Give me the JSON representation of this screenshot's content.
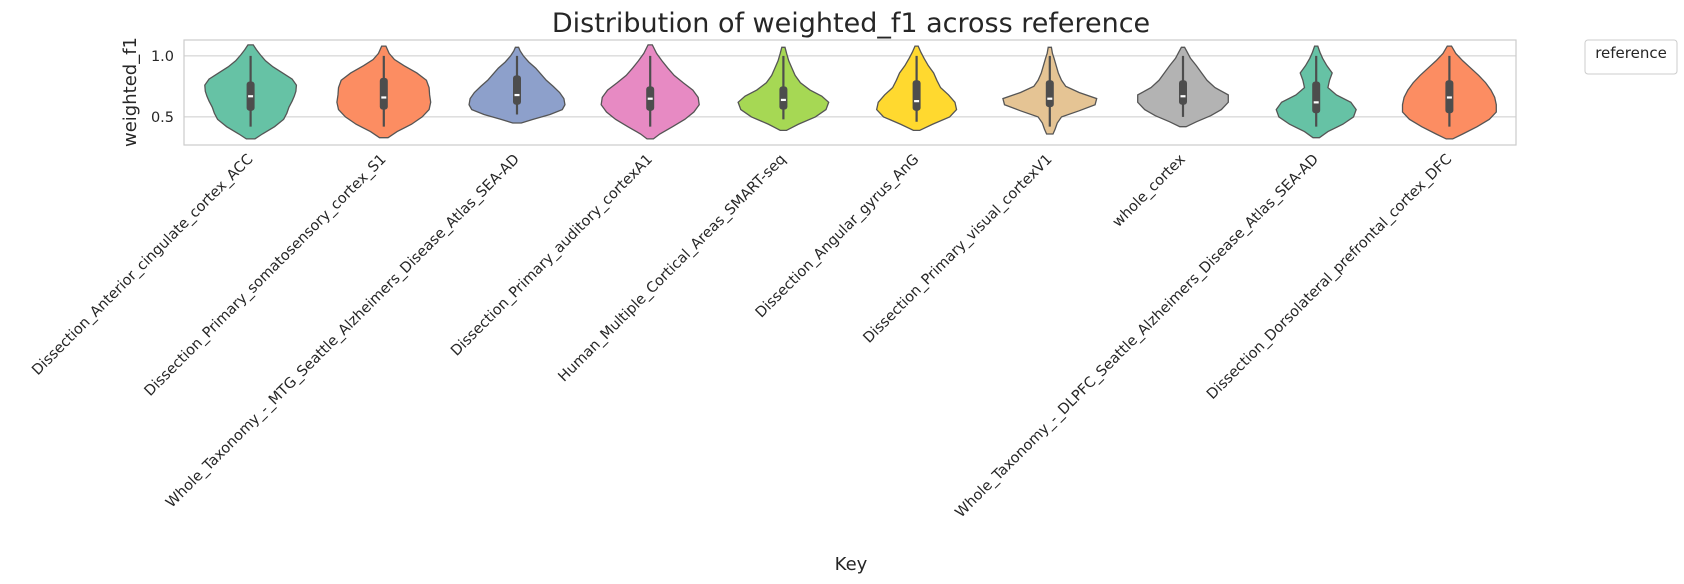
{
  "chart_data": {
    "type": "violin",
    "title": "Distribution of weighted_f1 across reference",
    "xlabel": "Key",
    "ylabel": "weighted_f1",
    "ylim": [
      0.27,
      1.13
    ],
    "yticks": [
      0.5,
      1.0
    ],
    "ytick_labels": [
      "0.5",
      "1.0"
    ],
    "grid": true,
    "legend": {
      "title": "reference",
      "placement": "outside-top-right"
    },
    "categories": [
      "Dissection_Anterior_cingulate_cortex_ACC",
      "Dissection_Primary_somatosensory_cortex_S1",
      "Whole_Taxonomy_-_MTG_Seattle_Alzheimers_Disease_Atlas_SEA-AD",
      "Dissection_Primary_auditory_cortexA1",
      "Human_Multiple_Cortical_Areas_SMART-seq",
      "Dissection_Angular_gyrus_AnG",
      "Dissection_Primary_visual_cortexV1",
      "whole_cortex",
      "Whole_Taxonomy_-_DLPFC_Seattle_Alzheimers_Disease_Atlas_SEA-AD",
      "Dissection_Dorsolateral_prefrontal_cortex_DFC"
    ],
    "colors": [
      "#66c2a5",
      "#fc8d62",
      "#8da0cb",
      "#e78ac3",
      "#a6d854",
      "#ffd92f",
      "#e5c494",
      "#b3b3b3",
      "#66c2a5",
      "#fc8d62"
    ],
    "series": [
      {
        "min": 0.32,
        "max": 1.09,
        "q1": 0.55,
        "median": 0.67,
        "q3": 0.79,
        "whisker_low": 0.42,
        "whisker_high": 1.0,
        "density": [
          [
            0.32,
            0.08
          ],
          [
            0.36,
            0.22
          ],
          [
            0.42,
            0.45
          ],
          [
            0.48,
            0.62
          ],
          [
            0.53,
            0.68
          ],
          [
            0.58,
            0.72
          ],
          [
            0.63,
            0.78
          ],
          [
            0.67,
            0.82
          ],
          [
            0.71,
            0.85
          ],
          [
            0.76,
            0.86
          ],
          [
            0.81,
            0.78
          ],
          [
            0.86,
            0.6
          ],
          [
            0.91,
            0.42
          ],
          [
            0.96,
            0.28
          ],
          [
            1.01,
            0.18
          ],
          [
            1.05,
            0.11
          ],
          [
            1.09,
            0.05
          ]
        ]
      },
      {
        "min": 0.33,
        "max": 1.08,
        "q1": 0.56,
        "median": 0.66,
        "q3": 0.82,
        "whisker_low": 0.42,
        "whisker_high": 1.0,
        "density": [
          [
            0.33,
            0.08
          ],
          [
            0.38,
            0.25
          ],
          [
            0.44,
            0.52
          ],
          [
            0.5,
            0.72
          ],
          [
            0.56,
            0.85
          ],
          [
            0.62,
            0.88
          ],
          [
            0.68,
            0.86
          ],
          [
            0.74,
            0.85
          ],
          [
            0.8,
            0.8
          ],
          [
            0.86,
            0.62
          ],
          [
            0.92,
            0.38
          ],
          [
            0.97,
            0.2
          ],
          [
            1.02,
            0.1
          ],
          [
            1.08,
            0.04
          ]
        ]
      },
      {
        "min": 0.45,
        "max": 1.07,
        "q1": 0.6,
        "median": 0.68,
        "q3": 0.84,
        "whisker_low": 0.52,
        "whisker_high": 1.0,
        "density": [
          [
            0.45,
            0.08
          ],
          [
            0.48,
            0.3
          ],
          [
            0.52,
            0.62
          ],
          [
            0.56,
            0.85
          ],
          [
            0.6,
            0.9
          ],
          [
            0.65,
            0.88
          ],
          [
            0.7,
            0.8
          ],
          [
            0.75,
            0.68
          ],
          [
            0.8,
            0.55
          ],
          [
            0.85,
            0.45
          ],
          [
            0.9,
            0.35
          ],
          [
            0.95,
            0.22
          ],
          [
            1.0,
            0.12
          ],
          [
            1.04,
            0.06
          ],
          [
            1.07,
            0.03
          ]
        ]
      },
      {
        "min": 0.32,
        "max": 1.09,
        "q1": 0.55,
        "median": 0.65,
        "q3": 0.75,
        "whisker_low": 0.42,
        "whisker_high": 1.0,
        "density": [
          [
            0.32,
            0.06
          ],
          [
            0.36,
            0.18
          ],
          [
            0.42,
            0.42
          ],
          [
            0.48,
            0.65
          ],
          [
            0.54,
            0.82
          ],
          [
            0.6,
            0.92
          ],
          [
            0.66,
            0.9
          ],
          [
            0.72,
            0.8
          ],
          [
            0.78,
            0.62
          ],
          [
            0.84,
            0.45
          ],
          [
            0.9,
            0.33
          ],
          [
            0.96,
            0.22
          ],
          [
            1.02,
            0.12
          ],
          [
            1.09,
            0.04
          ]
        ]
      },
      {
        "min": 0.39,
        "max": 1.07,
        "q1": 0.56,
        "median": 0.64,
        "q3": 0.75,
        "whisker_low": 0.48,
        "whisker_high": 1.0,
        "density": [
          [
            0.39,
            0.06
          ],
          [
            0.44,
            0.28
          ],
          [
            0.5,
            0.6
          ],
          [
            0.56,
            0.8
          ],
          [
            0.62,
            0.85
          ],
          [
            0.67,
            0.72
          ],
          [
            0.72,
            0.5
          ],
          [
            0.78,
            0.32
          ],
          [
            0.84,
            0.22
          ],
          [
            0.9,
            0.16
          ],
          [
            0.96,
            0.1
          ],
          [
            1.02,
            0.06
          ],
          [
            1.07,
            0.03
          ]
        ]
      },
      {
        "min": 0.39,
        "max": 1.08,
        "q1": 0.55,
        "median": 0.63,
        "q3": 0.8,
        "whisker_low": 0.46,
        "whisker_high": 1.0,
        "density": [
          [
            0.39,
            0.06
          ],
          [
            0.44,
            0.3
          ],
          [
            0.5,
            0.62
          ],
          [
            0.56,
            0.75
          ],
          [
            0.62,
            0.72
          ],
          [
            0.68,
            0.6
          ],
          [
            0.74,
            0.45
          ],
          [
            0.8,
            0.38
          ],
          [
            0.86,
            0.32
          ],
          [
            0.92,
            0.22
          ],
          [
            0.98,
            0.14
          ],
          [
            1.03,
            0.08
          ],
          [
            1.08,
            0.03
          ]
        ]
      },
      {
        "min": 0.36,
        "max": 1.07,
        "q1": 0.58,
        "median": 0.65,
        "q3": 0.8,
        "whisker_low": 0.42,
        "whisker_high": 1.0,
        "density": [
          [
            0.36,
            0.06
          ],
          [
            0.4,
            0.1
          ],
          [
            0.45,
            0.14
          ],
          [
            0.5,
            0.22
          ],
          [
            0.55,
            0.55
          ],
          [
            0.6,
            0.85
          ],
          [
            0.65,
            0.88
          ],
          [
            0.7,
            0.55
          ],
          [
            0.75,
            0.3
          ],
          [
            0.8,
            0.22
          ],
          [
            0.86,
            0.16
          ],
          [
            0.92,
            0.12
          ],
          [
            0.98,
            0.08
          ],
          [
            1.02,
            0.05
          ],
          [
            1.07,
            0.03
          ]
        ]
      },
      {
        "min": 0.42,
        "max": 1.07,
        "q1": 0.6,
        "median": 0.67,
        "q3": 0.8,
        "whisker_low": 0.5,
        "whisker_high": 1.0,
        "density": [
          [
            0.42,
            0.06
          ],
          [
            0.46,
            0.25
          ],
          [
            0.51,
            0.52
          ],
          [
            0.56,
            0.72
          ],
          [
            0.62,
            0.85
          ],
          [
            0.68,
            0.85
          ],
          [
            0.74,
            0.6
          ],
          [
            0.8,
            0.45
          ],
          [
            0.86,
            0.35
          ],
          [
            0.92,
            0.25
          ],
          [
            0.98,
            0.14
          ],
          [
            1.03,
            0.08
          ],
          [
            1.07,
            0.03
          ]
        ]
      },
      {
        "min": 0.33,
        "max": 1.08,
        "q1": 0.53,
        "median": 0.62,
        "q3": 0.79,
        "whisker_low": 0.42,
        "whisker_high": 1.0,
        "density": [
          [
            0.33,
            0.06
          ],
          [
            0.38,
            0.22
          ],
          [
            0.44,
            0.5
          ],
          [
            0.5,
            0.7
          ],
          [
            0.56,
            0.75
          ],
          [
            0.62,
            0.65
          ],
          [
            0.68,
            0.38
          ],
          [
            0.74,
            0.22
          ],
          [
            0.8,
            0.25
          ],
          [
            0.86,
            0.3
          ],
          [
            0.92,
            0.2
          ],
          [
            0.98,
            0.12
          ],
          [
            1.03,
            0.07
          ],
          [
            1.08,
            0.03
          ]
        ]
      },
      {
        "min": 0.32,
        "max": 1.08,
        "q1": 0.53,
        "median": 0.66,
        "q3": 0.8,
        "whisker_low": 0.42,
        "whisker_high": 1.0,
        "density": [
          [
            0.32,
            0.06
          ],
          [
            0.36,
            0.25
          ],
          [
            0.42,
            0.52
          ],
          [
            0.48,
            0.75
          ],
          [
            0.54,
            0.88
          ],
          [
            0.6,
            0.88
          ],
          [
            0.66,
            0.85
          ],
          [
            0.72,
            0.78
          ],
          [
            0.78,
            0.68
          ],
          [
            0.84,
            0.55
          ],
          [
            0.9,
            0.4
          ],
          [
            0.96,
            0.25
          ],
          [
            1.02,
            0.12
          ],
          [
            1.08,
            0.04
          ]
        ]
      }
    ]
  }
}
